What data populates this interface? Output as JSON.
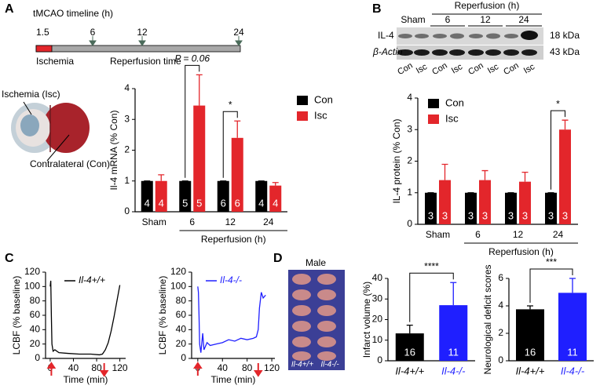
{
  "panel_labels": [
    "A",
    "B",
    "C",
    "D"
  ],
  "timeline": {
    "title": "tMCAO timeline (h)",
    "ticks": [
      1.5,
      6,
      12,
      24
    ],
    "ischemia": "Ischemia",
    "reperfusion": "Reperfusion time"
  },
  "brain": {
    "isc": "Ischemia (Isc)",
    "con": "Contralateral (Con)"
  },
  "blot": {
    "header": "Reperfusion (h)",
    "groups": [
      "Sham",
      "6",
      "12",
      "24"
    ],
    "rows": [
      "IL-4",
      "β-Actin"
    ],
    "sizes": [
      "18 kDa",
      "43 kDa"
    ],
    "lanes": [
      "Con",
      "Isc",
      "Con",
      "Isc",
      "Con",
      "Isc",
      "Con",
      "Isc"
    ]
  },
  "slices": {
    "title": "Male",
    "labels": [
      "Il-4+/+",
      "Il-4-/-"
    ]
  },
  "chart_data": [
    {
      "type": "bar",
      "ylabel": "Il-4 mRNA (% Con)",
      "xlabel": "Reperfusion (h)",
      "categories": [
        "Sham",
        "6",
        "12",
        "24"
      ],
      "series": [
        {
          "name": "Con",
          "color": "#000000",
          "values": [
            1,
            1,
            1,
            1
          ],
          "errors": [
            0,
            0,
            0,
            0
          ],
          "n": [
            4,
            5,
            6,
            4
          ]
        },
        {
          "name": "Isc",
          "color": "#e3262b",
          "values": [
            1,
            3.45,
            2.4,
            0.85
          ],
          "errors": [
            0.2,
            1,
            0.55,
            0.1
          ],
          "n": [
            4,
            5,
            6,
            4
          ]
        }
      ],
      "ylim": [
        0,
        4
      ],
      "yticks": [
        0,
        1,
        2,
        3,
        4
      ],
      "annotations": [
        "P = 0.06",
        "*"
      ]
    },
    {
      "type": "bar",
      "ylabel": "IL-4 protein (% Con)",
      "xlabel": "Reperfusion (h)",
      "categories": [
        "Sham",
        "6",
        "12",
        "24"
      ],
      "series": [
        {
          "name": "Con",
          "color": "#000000",
          "values": [
            1,
            1,
            1,
            1
          ],
          "errors": [
            0,
            0,
            0,
            0
          ],
          "n": [
            3,
            3,
            3,
            3
          ]
        },
        {
          "name": "Isc",
          "color": "#e3262b",
          "values": [
            1.4,
            1.4,
            1.35,
            3.0
          ],
          "errors": [
            0.5,
            0.3,
            0.3,
            0.3
          ],
          "n": [
            3,
            3,
            3,
            3
          ]
        }
      ],
      "ylim": [
        0,
        4
      ],
      "yticks": [
        0,
        1,
        2,
        3,
        4
      ],
      "annotations": [
        "*"
      ]
    },
    {
      "type": "line",
      "ylabel": "LCBF (% baseline)",
      "xlabel": "Time (min)",
      "series": [
        {
          "name": "Il-4+/+",
          "color": "#000000",
          "x": [
            0,
            1,
            2,
            3,
            5,
            8,
            15,
            30,
            50,
            70,
            85,
            90,
            95,
            100,
            105,
            110,
            115,
            120
          ],
          "values": [
            100,
            108,
            60,
            20,
            10,
            12,
            8,
            7,
            6,
            6,
            5,
            6,
            12,
            22,
            38,
            58,
            80,
            102
          ]
        }
      ],
      "events": [
        2,
        93
      ],
      "xlim": [
        -8,
        130
      ],
      "xticks": [
        0,
        40,
        80,
        120
      ],
      "ylim": [
        0,
        120
      ],
      "yticks": [
        0,
        20,
        40,
        60,
        80,
        100,
        120
      ]
    },
    {
      "type": "line",
      "ylabel": "LCBF (% baseline)",
      "xlabel": "Time (min)",
      "series": [
        {
          "name": "Il-4-/-",
          "color": "#1f1fff",
          "x": [
            0,
            1,
            2,
            3,
            5,
            8,
            10,
            15,
            20,
            30,
            40,
            50,
            60,
            70,
            80,
            90,
            95,
            98,
            100,
            103,
            106,
            110
          ],
          "values": [
            100,
            92,
            60,
            20,
            8,
            35,
            12,
            22,
            18,
            20,
            22,
            26,
            24,
            28,
            26,
            28,
            30,
            40,
            70,
            92,
            84,
            88
          ]
        }
      ],
      "events": [
        0,
        98
      ],
      "xlim": [
        -10,
        125
      ],
      "xticks": [
        0,
        40,
        80,
        120
      ],
      "ylim": [
        0,
        120
      ],
      "yticks": [
        0,
        20,
        40,
        60,
        80,
        100,
        120
      ]
    },
    {
      "type": "bar",
      "ylabel": "Infarct volume  (%)",
      "categories": [
        "Il-4+/+",
        "Il-4-/-"
      ],
      "values": [
        13.3,
        27
      ],
      "errors": [
        4,
        11
      ],
      "n": [
        16,
        11
      ],
      "colors": [
        "#000000",
        "#1f1fff"
      ],
      "ylim": [
        0,
        40
      ],
      "yticks": [
        0,
        10,
        20,
        30,
        40
      ],
      "annotations": [
        "****"
      ]
    },
    {
      "type": "bar",
      "ylabel": "Neurological deficit scores",
      "categories": [
        "Il-4+/+",
        "Il-4-/-"
      ],
      "values": [
        3.75,
        4.95
      ],
      "errors": [
        0.25,
        1.05
      ],
      "n": [
        16,
        11
      ],
      "colors": [
        "#000000",
        "#1f1fff"
      ],
      "ylim": [
        0,
        6
      ],
      "yticks": [
        0,
        2,
        4,
        6
      ],
      "annotations": [
        "***"
      ]
    }
  ]
}
